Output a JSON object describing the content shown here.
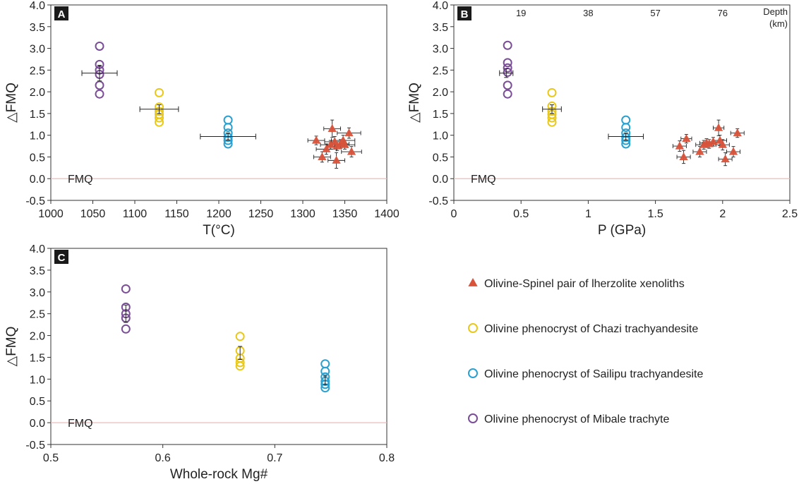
{
  "colors": {
    "xenolith": "#d9533b",
    "chazi": "#e8c81c",
    "sailipu": "#2aa0d0",
    "mibale": "#7a4e96",
    "fmq_line": "#f2b8b8",
    "axis": "#333333",
    "errorbar": "#222222"
  },
  "legend": [
    {
      "key": "xenolith",
      "marker": "triangle",
      "label": "Olivine-Spinel pair of lherzolite xenoliths"
    },
    {
      "key": "chazi",
      "marker": "circle",
      "label": "Olivine phenocryst of Chazi trachyandesite"
    },
    {
      "key": "sailipu",
      "marker": "circle",
      "label": "Olivine phenocryst of Sailipu trachyandesite"
    },
    {
      "key": "mibale",
      "marker": "circle",
      "label": "Olivine phenocryst of Mibale trachyte"
    }
  ],
  "chart_data": [
    {
      "panel": "A",
      "type": "scatter",
      "xlabel": "T(°C)",
      "ylabel": "△FMQ",
      "xlim": [
        1000,
        1400
      ],
      "ylim": [
        -0.5,
        4.0
      ],
      "xticks": [
        "1000",
        "1050",
        "1100",
        "1150",
        "1200",
        "1250",
        "1300",
        "1350",
        "1400"
      ],
      "yticks": [
        "-0.5",
        "0.0",
        "0.5",
        "1.0",
        "1.5",
        "2.0",
        "2.5",
        "3.0",
        "3.5",
        "4.0"
      ],
      "reference_line": {
        "y": 0,
        "label": "FMQ"
      },
      "grid": false,
      "series": [
        {
          "key": "mibale",
          "marker": "circle",
          "x": [
            1058,
            1058,
            1058,
            1058,
            1058,
            1058
          ],
          "y": [
            3.05,
            2.63,
            2.5,
            2.4,
            2.15,
            1.95
          ],
          "errorbar": {
            "x": 1058,
            "y": 2.43,
            "xerr": 21,
            "yerr": 0.18
          }
        },
        {
          "key": "chazi",
          "marker": "circle",
          "x": [
            1129,
            1129,
            1129,
            1129,
            1129,
            1129
          ],
          "y": [
            1.98,
            1.65,
            1.55,
            1.48,
            1.4,
            1.3
          ],
          "errorbar": {
            "x": 1129,
            "y": 1.6,
            "xerr": 23,
            "yerr": 0.1
          }
        },
        {
          "key": "sailipu",
          "marker": "circle",
          "x": [
            1211,
            1211,
            1211,
            1211,
            1211,
            1211
          ],
          "y": [
            1.35,
            1.18,
            1.05,
            0.95,
            0.88,
            0.8
          ],
          "errorbar": {
            "x": 1211,
            "y": 0.97,
            "xerr": 33,
            "yerr": 0.08
          }
        },
        {
          "key": "xenolith",
          "marker": "triangle",
          "x": [
            1316,
            1323,
            1328,
            1333,
            1335,
            1338,
            1340,
            1341,
            1345,
            1348,
            1350,
            1355,
            1358
          ],
          "y": [
            0.88,
            0.5,
            0.68,
            0.78,
            1.15,
            0.85,
            0.42,
            0.75,
            0.8,
            0.88,
            0.78,
            1.05,
            0.62
          ],
          "xerr": [
            10,
            10,
            12,
            12,
            10,
            12,
            10,
            12,
            10,
            14,
            12,
            14,
            12
          ],
          "yerr": [
            0.1,
            0.12,
            0.12,
            0.1,
            0.2,
            0.12,
            0.18,
            0.1,
            0.1,
            0.12,
            0.1,
            0.12,
            0.12
          ]
        }
      ]
    },
    {
      "panel": "B",
      "type": "scatter",
      "xlabel": "P (GPa)",
      "ylabel": "△FMQ",
      "xlim": [
        0,
        2.5
      ],
      "ylim": [
        -0.5,
        4.0
      ],
      "xticks": [
        "0",
        "0.5",
        "1",
        "1.5",
        "2",
        "2.5"
      ],
      "yticks": [
        "-0.5",
        "0.0",
        "0.5",
        "1.0",
        "1.5",
        "2.0",
        "2.5",
        "3.0",
        "3.5",
        "4.0"
      ],
      "top_axis": {
        "label_line1": "Depth",
        "label_line2": "(km)",
        "ticks": [
          "19",
          "38",
          "57",
          "76"
        ],
        "positions_gpa": [
          0.5,
          1.0,
          1.5,
          2.0
        ]
      },
      "reference_line": {
        "y": 0,
        "label": "FMQ"
      },
      "grid": false,
      "series": [
        {
          "key": "mibale",
          "marker": "circle",
          "x": [
            0.4,
            0.4,
            0.4,
            0.4,
            0.4,
            0.4
          ],
          "y": [
            3.07,
            2.67,
            2.55,
            2.45,
            2.15,
            1.95
          ],
          "errorbar": {
            "x": 0.39,
            "y": 2.43,
            "xerr": 0.05,
            "yerr": 0.1
          }
        },
        {
          "key": "chazi",
          "marker": "circle",
          "x": [
            0.73,
            0.73,
            0.73,
            0.73,
            0.73,
            0.73
          ],
          "y": [
            1.98,
            1.67,
            1.55,
            1.48,
            1.4,
            1.3
          ],
          "errorbar": {
            "x": 0.73,
            "y": 1.6,
            "xerr": 0.07,
            "yerr": 0.1
          }
        },
        {
          "key": "sailipu",
          "marker": "circle",
          "x": [
            1.28,
            1.28,
            1.28,
            1.28,
            1.28,
            1.28
          ],
          "y": [
            1.35,
            1.18,
            1.05,
            0.95,
            0.88,
            0.8
          ],
          "errorbar": {
            "x": 1.28,
            "y": 0.97,
            "xerr": 0.13,
            "yerr": 0.08
          }
        },
        {
          "key": "xenolith",
          "marker": "triangle",
          "x": [
            1.68,
            1.71,
            1.73,
            1.83,
            1.86,
            1.88,
            1.9,
            1.93,
            1.97,
            1.98,
            2.0,
            2.02,
            2.08,
            2.11
          ],
          "y": [
            0.75,
            0.5,
            0.92,
            0.62,
            0.78,
            0.82,
            0.8,
            0.85,
            1.17,
            0.88,
            0.78,
            0.45,
            0.62,
            1.05
          ],
          "xerr": [
            0.05,
            0.05,
            0.04,
            0.05,
            0.06,
            0.05,
            0.05,
            0.05,
            0.04,
            0.05,
            0.05,
            0.05,
            0.05,
            0.05
          ],
          "yerr": [
            0.12,
            0.15,
            0.1,
            0.12,
            0.1,
            0.1,
            0.1,
            0.1,
            0.18,
            0.12,
            0.12,
            0.15,
            0.12,
            0.1
          ]
        }
      ]
    },
    {
      "panel": "C",
      "type": "scatter",
      "xlabel": "Whole-rock Mg#",
      "ylabel": "△FMQ",
      "xlim": [
        0.5,
        0.8
      ],
      "ylim": [
        -0.5,
        4.0
      ],
      "xticks": [
        "0.5",
        "0.6",
        "0.7",
        "0.8"
      ],
      "yticks": [
        "-0.5",
        "0.0",
        "0.5",
        "1.0",
        "1.5",
        "2.0",
        "2.5",
        "3.0",
        "3.5",
        "4.0"
      ],
      "reference_line": {
        "y": 0,
        "label": "FMQ"
      },
      "grid": false,
      "series": [
        {
          "key": "mibale",
          "marker": "circle",
          "x": [
            0.567,
            0.567,
            0.567,
            0.567,
            0.567
          ],
          "y": [
            3.07,
            2.65,
            2.5,
            2.4,
            2.15
          ],
          "errorbar": {
            "x": 0.567,
            "y": 2.5,
            "xerr": 0,
            "yerr": 0.2
          }
        },
        {
          "key": "chazi",
          "marker": "circle",
          "x": [
            0.669,
            0.669,
            0.669,
            0.669,
            0.669
          ],
          "y": [
            1.98,
            1.65,
            1.48,
            1.38,
            1.3
          ],
          "errorbar": {
            "x": 0.669,
            "y": 1.6,
            "xerr": 0,
            "yerr": 0.15
          }
        },
        {
          "key": "sailipu",
          "marker": "circle",
          "x": [
            0.745,
            0.745,
            0.745,
            0.745,
            0.745,
            0.745
          ],
          "y": [
            1.35,
            1.18,
            1.05,
            0.95,
            0.88,
            0.8
          ],
          "errorbar": {
            "x": 0.745,
            "y": 0.97,
            "xerr": 0,
            "yerr": 0.1
          }
        }
      ]
    }
  ]
}
